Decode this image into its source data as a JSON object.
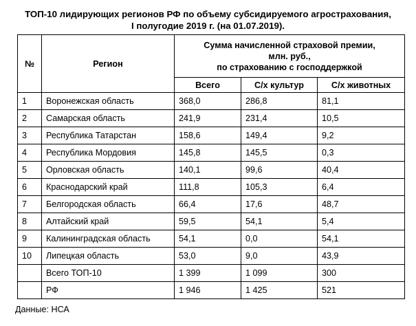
{
  "title": {
    "line1": "ТОП-10 лидирующих регионов РФ по объему субсидируемого агрострахования,",
    "line2": "I полугодие 2019 г. (на 01.07.2019)."
  },
  "table": {
    "header": {
      "num": "№",
      "region": "Регион",
      "group_line1": "Сумма начисленной страховой премии,",
      "group_line2": "млн. руб.,",
      "group_line3": "по страхованию с господдержкой",
      "total": "Всего",
      "crops": "С/х культур",
      "animals": "С/х животных"
    },
    "rows": [
      {
        "num": "1",
        "region": "Воронежская область",
        "total": "368,0",
        "crops": "286,8",
        "animals": "81,1"
      },
      {
        "num": "2",
        "region": "Самарская область",
        "total": "241,9",
        "crops": "231,4",
        "animals": "10,5"
      },
      {
        "num": "3",
        "region": "Республика Татарстан",
        "total": "158,6",
        "crops": "149,4",
        "animals": "9,2"
      },
      {
        "num": "4",
        "region": "Республика Мордовия",
        "total": "145,8",
        "crops": "145,5",
        "animals": "0,3"
      },
      {
        "num": "5",
        "region": "Орловская область",
        "total": "140,1",
        "crops": "99,6",
        "animals": "40,4"
      },
      {
        "num": "6",
        "region": "Краснодарский край",
        "total": "111,8",
        "crops": "105,3",
        "animals": "6,4"
      },
      {
        "num": "7",
        "region": "Белгородская область",
        "total": "66,4",
        "crops": "17,6",
        "animals": "48,7"
      },
      {
        "num": "8",
        "region": "Алтайский край",
        "total": "59,5",
        "crops": "54,1",
        "animals": "5,4"
      },
      {
        "num": "9",
        "region": "Калининградская область",
        "total": "54,1",
        "crops": "0,0",
        "animals": "54,1"
      },
      {
        "num": "10",
        "region": "Липецкая область",
        "total": "53,0",
        "crops": "9,0",
        "animals": "43,9"
      },
      {
        "num": "",
        "region": "Всего ТОП-10",
        "total": "1 399",
        "crops": "1 099",
        "animals": "300"
      },
      {
        "num": "",
        "region": "РФ",
        "total": "1 946",
        "crops": "1 425",
        "animals": "521"
      }
    ]
  },
  "source": "Данные: НСА"
}
